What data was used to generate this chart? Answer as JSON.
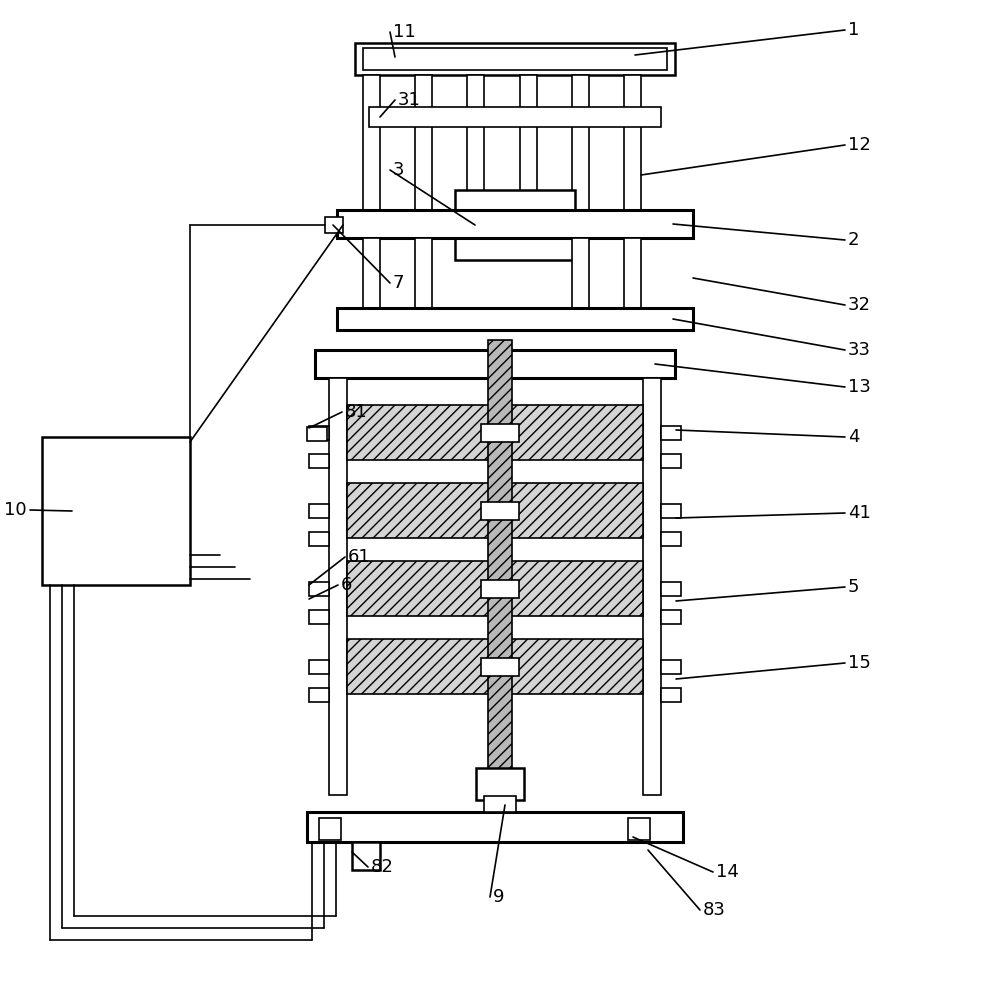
{
  "bg_color": "#ffffff",
  "line_color": "#000000",
  "figsize": [
    9.87,
    10.0
  ],
  "dpi": 100
}
